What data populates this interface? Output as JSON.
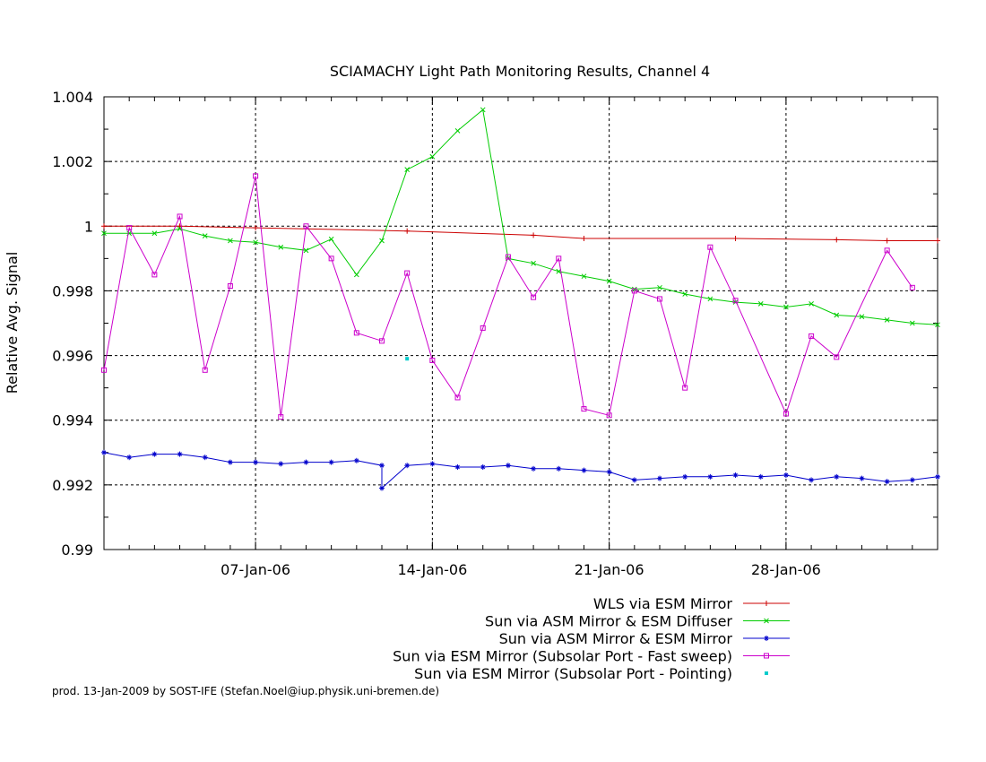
{
  "chart_data": {
    "type": "line",
    "title": "SCIAMACHY Light Path Monitoring Results, Channel 4",
    "xlabel": "",
    "ylabel": "Relative Avg. Signal",
    "x_axis": {
      "type": "date",
      "range": [
        "2006-01-01",
        "2006-02-03"
      ],
      "tick_labels": [
        {
          "date": "2006-01-07",
          "label": "07-Jan-06"
        },
        {
          "date": "2006-01-14",
          "label": "14-Jan-06"
        },
        {
          "date": "2006-01-21",
          "label": "21-Jan-06"
        },
        {
          "date": "2006-01-28",
          "label": "28-Jan-06"
        }
      ]
    },
    "y_axis": {
      "range": [
        0.99,
        1.004
      ],
      "tick_labels": [
        "0.99",
        "0.992",
        "0.994",
        "0.996",
        "0.998",
        "1",
        "1.002",
        "1.004"
      ],
      "tick_values": [
        0.99,
        0.992,
        0.994,
        0.996,
        0.998,
        1.0,
        1.002,
        1.004
      ]
    },
    "grid": true,
    "legend_position": "bottom-right",
    "series": [
      {
        "name": "WLS via ESM Mirror",
        "color": "#cc0000",
        "marker": "plus",
        "points": [
          [
            "2006-01-01",
            1.0
          ],
          [
            "2006-01-04",
            1.0
          ],
          [
            "2006-01-07",
            0.99995
          ],
          [
            "2006-01-13",
            0.99985
          ],
          [
            "2006-01-18",
            0.99972
          ],
          [
            "2006-01-20",
            0.99962
          ],
          [
            "2006-01-26",
            0.99962
          ],
          [
            "2006-01-30",
            0.99958
          ],
          [
            "2006-02-01",
            0.99955
          ],
          [
            "2006-02-03",
            0.99955
          ]
        ]
      },
      {
        "name": "Sun via ASM Mirror & ESM Diffuser",
        "color": "#00cc00",
        "marker": "cross",
        "points": [
          [
            "2006-01-01",
            0.99978
          ],
          [
            "2006-01-02",
            0.99978
          ],
          [
            "2006-01-03",
            0.99978
          ],
          [
            "2006-01-04",
            0.99992
          ],
          [
            "2006-01-05",
            0.9997
          ],
          [
            "2006-01-06",
            0.99955
          ],
          [
            "2006-01-07",
            0.9995
          ],
          [
            "2006-01-08",
            0.99935
          ],
          [
            "2006-01-09",
            0.99925
          ],
          [
            "2006-01-10",
            0.9996
          ],
          [
            "2006-01-11",
            0.9985
          ],
          [
            "2006-01-12",
            0.99955
          ],
          [
            "2006-01-13",
            1.00175
          ],
          [
            "2006-01-14",
            1.00215
          ],
          [
            "2006-01-15",
            1.00295
          ],
          [
            "2006-01-16",
            1.0036
          ],
          [
            "2006-01-17",
            0.999
          ],
          [
            "2006-01-18",
            0.99885
          ],
          [
            "2006-01-19",
            0.9986
          ],
          [
            "2006-01-20",
            0.99845
          ],
          [
            "2006-01-21",
            0.9983
          ],
          [
            "2006-01-22",
            0.99805
          ],
          [
            "2006-01-23",
            0.9981
          ],
          [
            "2006-01-24",
            0.9979
          ],
          [
            "2006-01-25",
            0.99775
          ],
          [
            "2006-01-26",
            0.99765
          ],
          [
            "2006-01-27",
            0.9976
          ],
          [
            "2006-01-28",
            0.9975
          ],
          [
            "2006-01-29",
            0.9976
          ],
          [
            "2006-01-30",
            0.99725
          ],
          [
            "2006-01-31",
            0.9972
          ],
          [
            "2006-02-01",
            0.9971
          ],
          [
            "2006-02-02",
            0.997
          ],
          [
            "2006-02-03",
            0.99695
          ]
        ]
      },
      {
        "name": "Sun via ASM Mirror & ESM Mirror",
        "color": "#0000cc",
        "marker": "star",
        "points": [
          [
            "2006-01-01",
            0.993
          ],
          [
            "2006-01-02",
            0.99285
          ],
          [
            "2006-01-03",
            0.99295
          ],
          [
            "2006-01-04",
            0.99295
          ],
          [
            "2006-01-05",
            0.99285
          ],
          [
            "2006-01-06",
            0.9927
          ],
          [
            "2006-01-07",
            0.9927
          ],
          [
            "2006-01-08",
            0.99265
          ],
          [
            "2006-01-09",
            0.9927
          ],
          [
            "2006-01-10",
            0.9927
          ],
          [
            "2006-01-11",
            0.99275
          ],
          [
            "2006-01-12",
            0.9926
          ],
          [
            "2006-01-12",
            0.9919
          ],
          [
            "2006-01-13",
            0.9926
          ],
          [
            "2006-01-14",
            0.99265
          ],
          [
            "2006-01-15",
            0.99255
          ],
          [
            "2006-01-16",
            0.99255
          ],
          [
            "2006-01-17",
            0.9926
          ],
          [
            "2006-01-18",
            0.9925
          ],
          [
            "2006-01-19",
            0.9925
          ],
          [
            "2006-01-20",
            0.99245
          ],
          [
            "2006-01-21",
            0.9924
          ],
          [
            "2006-01-22",
            0.99215
          ],
          [
            "2006-01-23",
            0.9922
          ],
          [
            "2006-01-24",
            0.99225
          ],
          [
            "2006-01-25",
            0.99225
          ],
          [
            "2006-01-26",
            0.9923
          ],
          [
            "2006-01-27",
            0.99225
          ],
          [
            "2006-01-28",
            0.9923
          ],
          [
            "2006-01-29",
            0.99215
          ],
          [
            "2006-01-30",
            0.99225
          ],
          [
            "2006-01-31",
            0.9922
          ],
          [
            "2006-02-01",
            0.9921
          ],
          [
            "2006-02-02",
            0.99215
          ],
          [
            "2006-02-03",
            0.99225
          ]
        ]
      },
      {
        "name": "Sun via ESM Mirror (Subsolar Port - Fast sweep)",
        "color": "#cc00cc",
        "marker": "square",
        "points": [
          [
            "2006-01-01",
            0.99555
          ],
          [
            "2006-01-02",
            0.99995
          ],
          [
            "2006-01-03",
            0.9985
          ],
          [
            "2006-01-04",
            1.0003
          ],
          [
            "2006-01-05",
            0.99555
          ],
          [
            "2006-01-06",
            0.99815
          ],
          [
            "2006-01-07",
            1.00155
          ],
          [
            "2006-01-08",
            0.9941
          ],
          [
            "2006-01-09",
            1.0
          ],
          [
            "2006-01-10",
            0.999
          ],
          [
            "2006-01-11",
            0.9967
          ],
          [
            "2006-01-12",
            0.99645
          ],
          [
            "2006-01-13",
            0.99855
          ],
          [
            "2006-01-14",
            0.99585
          ],
          [
            "2006-01-15",
            0.9947
          ],
          [
            "2006-01-16",
            0.99685
          ],
          [
            "2006-01-17",
            0.99905
          ],
          [
            "2006-01-18",
            0.9978
          ],
          [
            "2006-01-19",
            0.999
          ],
          [
            "2006-01-20",
            0.99435
          ],
          [
            "2006-01-21",
            0.99415
          ],
          [
            "2006-01-22",
            0.998
          ],
          [
            "2006-01-23",
            0.99775
          ],
          [
            "2006-01-24",
            0.995
          ],
          [
            "2006-01-25",
            0.99935
          ],
          [
            "2006-01-26",
            0.9977
          ],
          [
            "2006-01-28",
            0.9942
          ],
          [
            "2006-01-29",
            0.9966
          ],
          [
            "2006-01-30",
            0.99595
          ],
          [
            "2006-02-01",
            0.99925
          ],
          [
            "2006-02-02",
            0.9981
          ]
        ]
      },
      {
        "name": "Sun via ESM Mirror (Subsolar Port - Pointing)",
        "color": "#00cccc",
        "marker": "dot",
        "points": [
          [
            "2006-01-13",
            0.9959
          ]
        ]
      }
    ]
  },
  "footer": "prod. 13-Jan-2009 by SOST-IFE (Stefan.Noel@iup.physik.uni-bremen.de)"
}
